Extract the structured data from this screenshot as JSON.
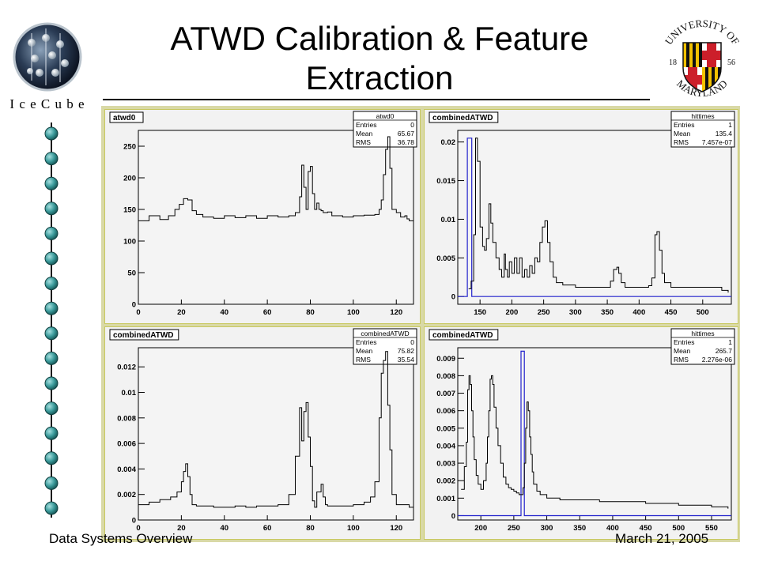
{
  "slide": {
    "title_line1": "ATWD Calibration & Feature",
    "title_line2": "Extraction",
    "footer_left": "Data Systems Overview",
    "footer_right": "March 21, 2005"
  },
  "logos": {
    "icecube_text": "I c e C u b e",
    "umd_top": "UNIVERSITY OF",
    "umd_bottom": "MARYLAND",
    "umd_year_left": "18",
    "umd_year_right": "56"
  },
  "colors": {
    "frame": "#d9d9a6",
    "panel_bg": "#f2f2f2",
    "hist_line": "#000000",
    "overlay_line": "#2222cc"
  },
  "chart_data": [
    {
      "type": "line",
      "name_label": "atwd0",
      "stats": {
        "title": "atwd0",
        "rows": [
          {
            "k": "Entries",
            "v": "0"
          },
          {
            "k": "Mean",
            "v": "65.67"
          },
          {
            "k": "RMS",
            "v": "36.78"
          }
        ]
      },
      "xlim": [
        0,
        128
      ],
      "ylim": [
        0,
        275
      ],
      "xticks": [
        0,
        20,
        40,
        60,
        80,
        100,
        120
      ],
      "yticks": [
        0,
        50,
        100,
        150,
        200,
        250
      ],
      "ytick_labels": [
        "0",
        "50",
        "100",
        "150",
        "200",
        "250"
      ],
      "series": [
        {
          "x": [
            0,
            5,
            10,
            14,
            17,
            19,
            21,
            23,
            25,
            27,
            30,
            35,
            40,
            45,
            50,
            55,
            60,
            65,
            70,
            73,
            75,
            76,
            77,
            78,
            79,
            80,
            81,
            82,
            83,
            84,
            85,
            86,
            88,
            90,
            95,
            100,
            105,
            110,
            112,
            113,
            114,
            115,
            116,
            117,
            118,
            120,
            122,
            124,
            125,
            126,
            128
          ],
          "values": [
            132,
            140,
            134,
            140,
            150,
            158,
            167,
            165,
            148,
            142,
            138,
            136,
            140,
            137,
            140,
            136,
            140,
            138,
            140,
            145,
            170,
            220,
            185,
            150,
            210,
            218,
            175,
            150,
            160,
            150,
            148,
            145,
            146,
            140,
            138,
            140,
            141,
            142,
            150,
            165,
            205,
            245,
            265,
            215,
            150,
            145,
            138,
            140,
            135,
            132,
            0
          ]
        }
      ]
    },
    {
      "type": "line",
      "name_label": "combinedATWD",
      "stats": {
        "title": "hittimes",
        "rows": [
          {
            "k": "Entries",
            "v": "1"
          },
          {
            "k": "Mean",
            "v": "135.4"
          },
          {
            "k": "RMS",
            "v": "7.457e-07"
          }
        ]
      },
      "xlim": [
        115,
        545
      ],
      "ylim": [
        -0.001,
        0.0215
      ],
      "xticks": [
        150,
        200,
        250,
        300,
        350,
        400,
        450,
        500
      ],
      "yticks": [
        0,
        0.005,
        0.01,
        0.015,
        0.02
      ],
      "ytick_labels": [
        "0",
        "0.005",
        "0.01",
        "0.015",
        "0.02"
      ],
      "overlay": {
        "x": [
          130,
          137
        ],
        "top": 0.0205
      },
      "series": [
        {
          "x": [
            132,
            136,
            140,
            143,
            146,
            150,
            154,
            157,
            160,
            164,
            167,
            170,
            175,
            180,
            184,
            188,
            190,
            193,
            196,
            200,
            204,
            208,
            212,
            216,
            220,
            224,
            228,
            232,
            236,
            240,
            244,
            248,
            252,
            256,
            260,
            265,
            270,
            280,
            300,
            330,
            355,
            360,
            365,
            368,
            372,
            378,
            385,
            400,
            415,
            420,
            425,
            428,
            432,
            436,
            440,
            450,
            470,
            500,
            530,
            540
          ],
          "values": [
            0.001,
            0.002,
            0.008,
            0.0205,
            0.0175,
            0.009,
            0.0065,
            0.006,
            0.0075,
            0.012,
            0.0095,
            0.007,
            0.005,
            0.0035,
            0.0025,
            0.0055,
            0.0035,
            0.0025,
            0.0045,
            0.003,
            0.005,
            0.003,
            0.005,
            0.0025,
            0.0035,
            0.0025,
            0.004,
            0.003,
            0.005,
            0.0045,
            0.007,
            0.009,
            0.0098,
            0.007,
            0.0045,
            0.0025,
            0.0018,
            0.0015,
            0.0012,
            0.0012,
            0.002,
            0.0035,
            0.0038,
            0.003,
            0.0018,
            0.0012,
            0.0012,
            0.0012,
            0.0014,
            0.0024,
            0.008,
            0.0084,
            0.006,
            0.003,
            0.0018,
            0.0012,
            0.0012,
            0.0012,
            0.0008,
            0.0005
          ]
        }
      ]
    },
    {
      "type": "line",
      "name_label": "combinedATWD",
      "stats": {
        "title": "combinedATWD",
        "rows": [
          {
            "k": "Entries",
            "v": "0"
          },
          {
            "k": "Mean",
            "v": "75.82"
          },
          {
            "k": "RMS",
            "v": "35.54"
          }
        ]
      },
      "xlim": [
        0,
        128
      ],
      "ylim": [
        0,
        0.0135
      ],
      "xticks": [
        0,
        20,
        40,
        60,
        80,
        100,
        120
      ],
      "yticks": [
        0,
        0.002,
        0.004,
        0.006,
        0.008,
        0.01,
        0.012
      ],
      "ytick_labels": [
        "0",
        "0.002",
        "0.004",
        "0.006",
        "0.008",
        "0.01",
        "0.012"
      ],
      "series": [
        {
          "x": [
            0,
            5,
            10,
            15,
            18,
            20,
            21,
            22,
            23,
            24,
            25,
            27,
            30,
            35,
            40,
            45,
            50,
            55,
            60,
            65,
            70,
            73,
            75,
            76,
            77,
            78,
            79,
            80,
            81,
            82,
            83,
            85,
            86,
            87,
            88,
            89,
            90,
            92,
            95,
            100,
            105,
            108,
            110,
            112,
            113,
            114,
            115,
            116,
            117,
            118,
            120,
            122,
            126,
            128
          ],
          "values": [
            0.0012,
            0.0014,
            0.0016,
            0.0018,
            0.0022,
            0.003,
            0.0038,
            0.0044,
            0.0034,
            0.002,
            0.0012,
            0.0011,
            0.0011,
            0.001,
            0.001,
            0.0011,
            0.001,
            0.0011,
            0.0011,
            0.0012,
            0.002,
            0.005,
            0.0088,
            0.0062,
            0.0085,
            0.0092,
            0.0065,
            0.0042,
            0.0015,
            0.001,
            0.0022,
            0.0028,
            0.0018,
            0.0012,
            0.0011,
            0.0011,
            0.0011,
            0.0011,
            0.0011,
            0.0012,
            0.0014,
            0.0018,
            0.003,
            0.008,
            0.0115,
            0.0125,
            0.0132,
            0.009,
            0.0055,
            0.002,
            0.0012,
            0.0012,
            0.001,
            0.0008
          ]
        }
      ]
    },
    {
      "type": "line",
      "name_label": "combinedATWD",
      "stats": {
        "title": "hittimes",
        "rows": [
          {
            "k": "Entries",
            "v": "1"
          },
          {
            "k": "Mean",
            "v": "265.7"
          },
          {
            "k": "RMS",
            "v": "2.276e-06"
          }
        ]
      },
      "xlim": [
        165,
        580
      ],
      "ylim": [
        -0.00025,
        0.0096
      ],
      "xticks": [
        200,
        250,
        300,
        350,
        400,
        450,
        500,
        550
      ],
      "yticks": [
        0,
        0.001,
        0.002,
        0.003,
        0.004,
        0.005,
        0.006,
        0.007,
        0.008,
        0.009
      ],
      "ytick_labels": [
        "0",
        "0.001",
        "0.002",
        "0.003",
        "0.004",
        "0.005",
        "0.006",
        "0.007",
        "0.008",
        "0.009"
      ],
      "overlay": {
        "x": [
          261,
          266
        ],
        "top": 0.0094
      },
      "series": [
        {
          "x": [
            170,
            175,
            178,
            180,
            182,
            184,
            186,
            188,
            190,
            193,
            196,
            200,
            204,
            208,
            210,
            212,
            214,
            216,
            218,
            220,
            223,
            226,
            230,
            234,
            238,
            242,
            246,
            250,
            254,
            258,
            262,
            264,
            266,
            268,
            270,
            272,
            274,
            276,
            278,
            280,
            285,
            290,
            300,
            320,
            350,
            380,
            400,
            450,
            500,
            550,
            575
          ],
          "values": [
            0.0015,
            0.0028,
            0.0042,
            0.0072,
            0.008,
            0.0075,
            0.006,
            0.0045,
            0.0032,
            0.0023,
            0.0018,
            0.0015,
            0.002,
            0.003,
            0.0045,
            0.006,
            0.0078,
            0.008,
            0.0075,
            0.0062,
            0.005,
            0.004,
            0.003,
            0.0022,
            0.0018,
            0.0016,
            0.0015,
            0.0014,
            0.0013,
            0.0012,
            0.0012,
            0.0016,
            0.003,
            0.005,
            0.0065,
            0.006,
            0.0045,
            0.0035,
            0.0025,
            0.0018,
            0.0014,
            0.0012,
            0.001,
            0.0009,
            0.0009,
            0.0008,
            0.0008,
            0.0007,
            0.0006,
            0.0005,
            0.0004
          ]
        }
      ]
    }
  ]
}
